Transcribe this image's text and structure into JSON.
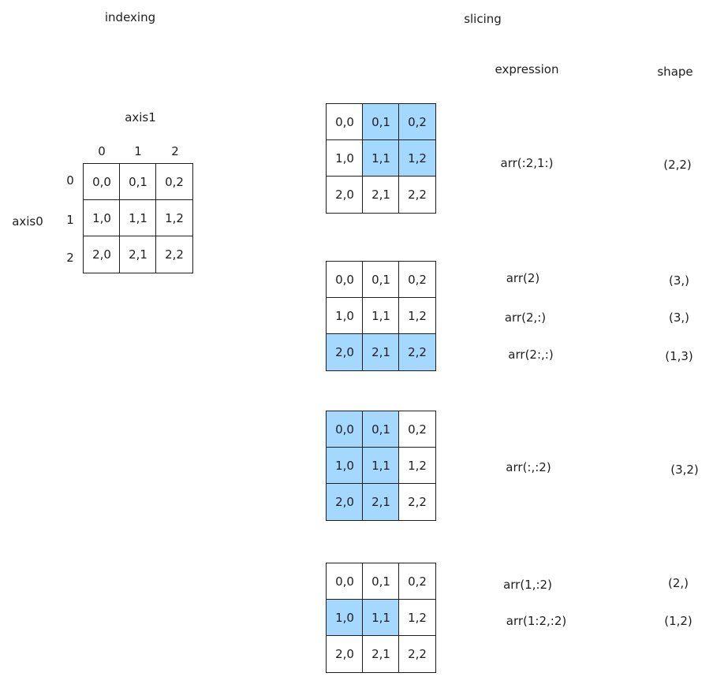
{
  "indexing": {
    "title": "indexing",
    "axis1_label": "axis1",
    "axis0_label": "axis0",
    "col_indices": [
      "0",
      "1",
      "2"
    ],
    "row_indices": [
      "0",
      "1",
      "2"
    ],
    "cells": [
      "0,0",
      "0,1",
      "0,2",
      "1,0",
      "1,1",
      "1,2",
      "2,0",
      "2,1",
      "2,2"
    ]
  },
  "slicing": {
    "title": "slicing",
    "expression_header": "expression",
    "shape_header": "shape",
    "colors": {
      "highlight": "#a5d8ff",
      "stroke": "#1e1e1e"
    },
    "examples": [
      {
        "cells": [
          "0,0",
          "0,1",
          "0,2",
          "1,0",
          "1,1",
          "1,2",
          "2,0",
          "2,1",
          "2,2"
        ],
        "highlight": [
          false,
          true,
          true,
          false,
          true,
          true,
          false,
          false,
          false
        ],
        "expressions": [
          "arr(:2,1:)"
        ],
        "shapes": [
          "(2,2)"
        ]
      },
      {
        "cells": [
          "0,0",
          "0,1",
          "0,2",
          "1,0",
          "1,1",
          "1,2",
          "2,0",
          "2,1",
          "2,2"
        ],
        "highlight": [
          false,
          false,
          false,
          false,
          false,
          false,
          true,
          true,
          true
        ],
        "expressions": [
          "arr(2)",
          "arr(2,:)",
          "arr(2:,:)"
        ],
        "shapes": [
          "(3,)",
          "(3,)",
          "(1,3)"
        ]
      },
      {
        "cells": [
          "0,0",
          "0,1",
          "0,2",
          "1,0",
          "1,1",
          "1,2",
          "2,0",
          "2,1",
          "2,2"
        ],
        "highlight": [
          true,
          true,
          false,
          true,
          true,
          false,
          true,
          true,
          false
        ],
        "expressions": [
          "arr(:,:2)"
        ],
        "shapes": [
          "(3,2)"
        ]
      },
      {
        "cells": [
          "0,0",
          "0,1",
          "0,2",
          "1,0",
          "1,1",
          "1,2",
          "2,0",
          "2,1",
          "2,2"
        ],
        "highlight": [
          false,
          false,
          false,
          true,
          true,
          false,
          false,
          false,
          false
        ],
        "expressions": [
          "arr(1,:2)",
          "arr(1:2,:2)"
        ],
        "shapes": [
          "(2,)",
          "(1,2)"
        ]
      }
    ]
  }
}
